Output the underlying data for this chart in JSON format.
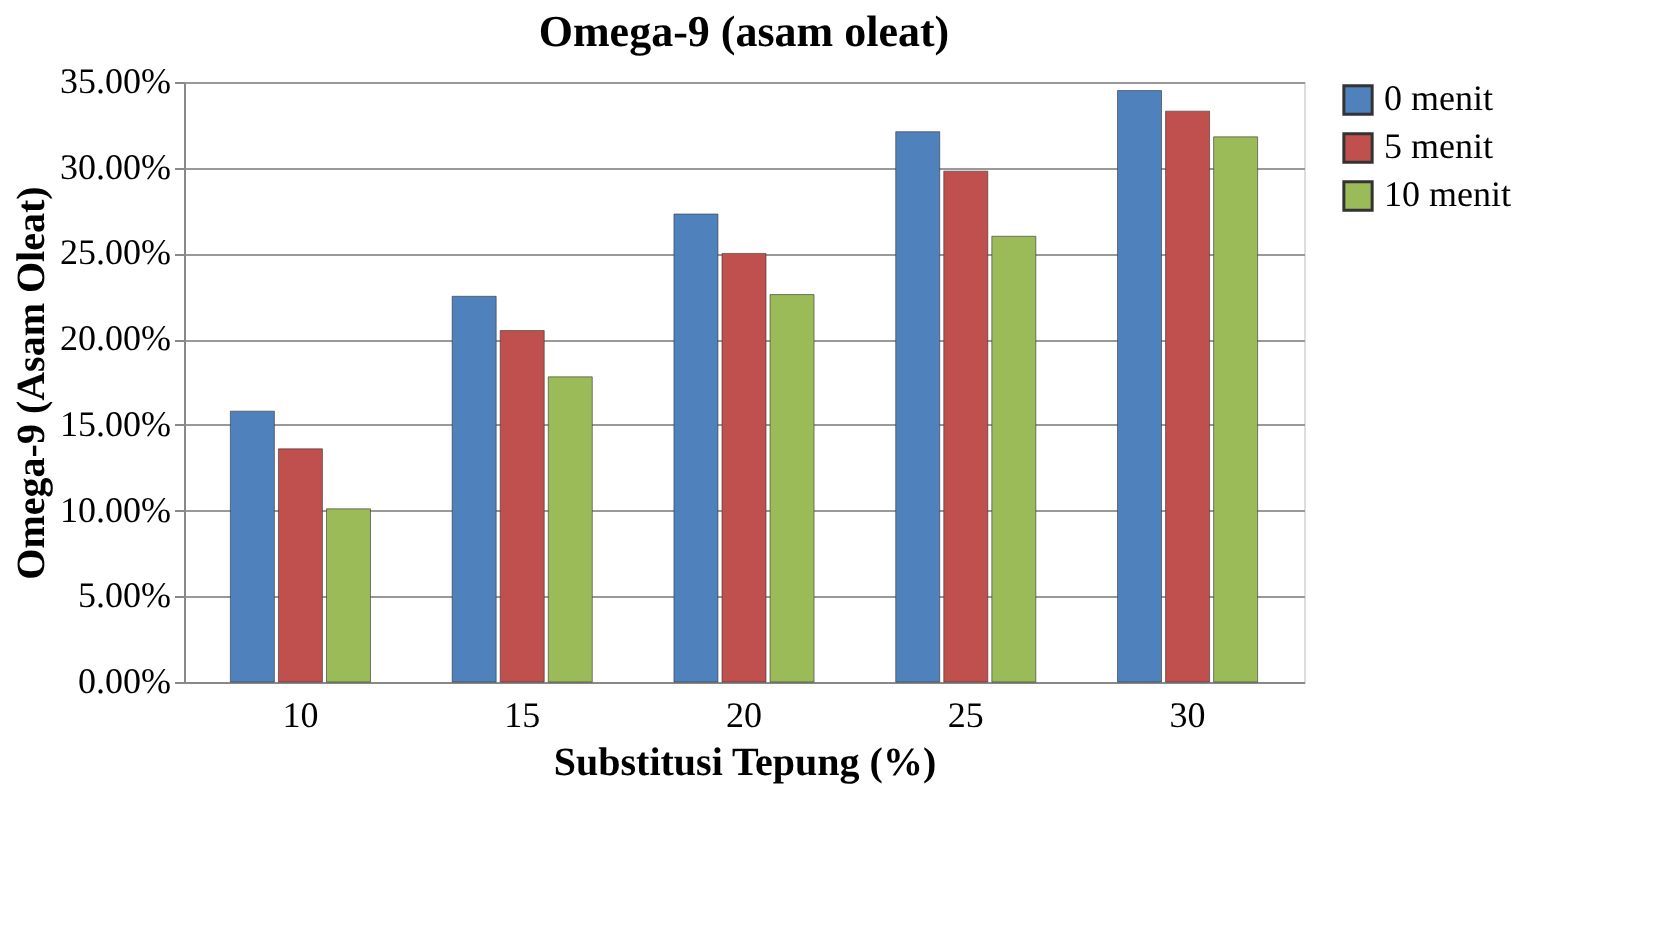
{
  "chart_data": {
    "type": "bar",
    "title": "Omega-9 (asam oleat)",
    "xlabel": "Substitusi Tepung (%)",
    "ylabel": "Omega-9 (Asam Oleat)",
    "categories": [
      "10",
      "15",
      "20",
      "25",
      "30"
    ],
    "series": [
      {
        "name": "0 menit",
        "color": "#4f81bd",
        "values": [
          15.8,
          22.5,
          27.3,
          32.1,
          34.5
        ]
      },
      {
        "name": "5 menit",
        "color": "#c0504d",
        "values": [
          13.6,
          20.5,
          25.0,
          29.8,
          33.3
        ]
      },
      {
        "name": "10 menit",
        "color": "#9bbb59",
        "values": [
          10.1,
          17.8,
          22.6,
          26.0,
          31.8
        ]
      }
    ],
    "ylim": [
      0,
      35
    ],
    "yticks": [
      {
        "value": 0,
        "label": "0.00%"
      },
      {
        "value": 5,
        "label": "5.00%"
      },
      {
        "value": 10,
        "label": "10.00%"
      },
      {
        "value": 15,
        "label": "15.00%"
      },
      {
        "value": 20,
        "label": "20.00%"
      },
      {
        "value": 25,
        "label": "25.00%"
      },
      {
        "value": 30,
        "label": "30.00%"
      },
      {
        "value": 35,
        "label": "35.00%"
      }
    ],
    "grid": "y",
    "legend": "right"
  }
}
